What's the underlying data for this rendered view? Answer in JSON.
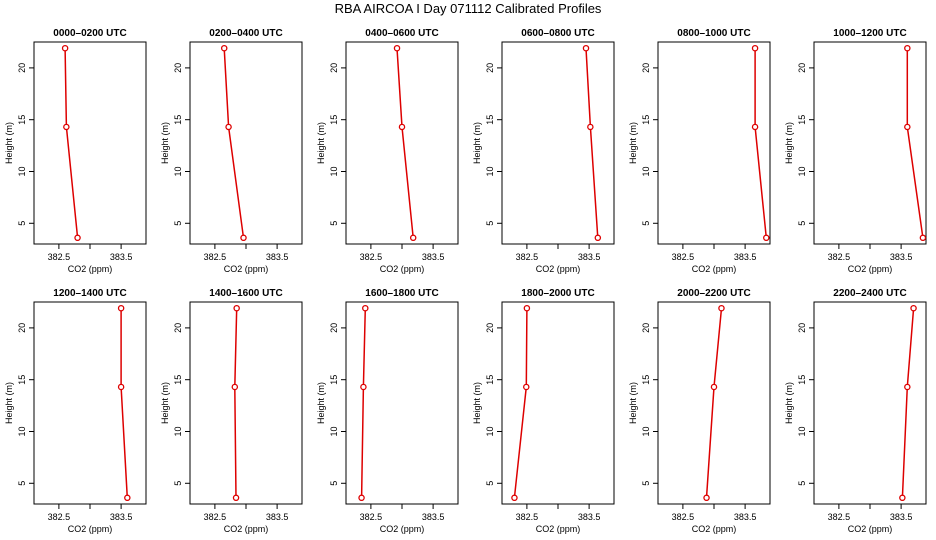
{
  "title": "RBA AIRCOA I  Day 071112  Calibrated Profiles",
  "colors": {
    "series": "#dd0000",
    "axis": "#000000",
    "background": "#ffffff"
  },
  "chart_data": [
    {
      "type": "line",
      "title": "0000–0200 UTC",
      "xlabel": "CO2 (ppm)",
      "ylabel": "Height (m)",
      "xlim": [
        382.1,
        383.9
      ],
      "ylim": [
        3,
        22.5
      ],
      "xticks": [
        382.5,
        383.0,
        383.5
      ],
      "xtick_labels": [
        "382.5",
        "",
        "383.5"
      ],
      "yticks": [
        5,
        10,
        15,
        20
      ],
      "ytick_labels": [
        "5",
        "10",
        "15",
        "20"
      ],
      "x": [
        382.6,
        382.62,
        382.8
      ],
      "y": [
        21.9,
        14.3,
        3.6
      ]
    },
    {
      "type": "line",
      "title": "0200–0400 UTC",
      "xlabel": "CO2 (ppm)",
      "ylabel": "Height (m)",
      "xlim": [
        382.1,
        383.9
      ],
      "ylim": [
        3,
        22.5
      ],
      "xticks": [
        382.5,
        383.0,
        383.5
      ],
      "xtick_labels": [
        "382.5",
        "",
        "383.5"
      ],
      "yticks": [
        5,
        10,
        15,
        20
      ],
      "ytick_labels": [
        "5",
        "10",
        "15",
        "20"
      ],
      "x": [
        382.65,
        382.72,
        382.96
      ],
      "y": [
        21.9,
        14.3,
        3.6
      ]
    },
    {
      "type": "line",
      "title": "0400–0600 UTC",
      "xlabel": "CO2 (ppm)",
      "ylabel": "Height (m)",
      "xlim": [
        382.1,
        383.9
      ],
      "ylim": [
        3,
        22.5
      ],
      "xticks": [
        382.5,
        383.0,
        383.5
      ],
      "xtick_labels": [
        "382.5",
        "",
        "383.5"
      ],
      "yticks": [
        5,
        10,
        15,
        20
      ],
      "ytick_labels": [
        "5",
        "10",
        "15",
        "20"
      ],
      "x": [
        382.92,
        383.0,
        383.18
      ],
      "y": [
        21.9,
        14.3,
        3.6
      ]
    },
    {
      "type": "line",
      "title": "0600–0800 UTC",
      "xlabel": "CO2 (ppm)",
      "ylabel": "Height (m)",
      "xlim": [
        382.1,
        383.9
      ],
      "ylim": [
        3,
        22.5
      ],
      "xticks": [
        382.5,
        383.0,
        383.5
      ],
      "xtick_labels": [
        "382.5",
        "",
        "383.5"
      ],
      "yticks": [
        5,
        10,
        15,
        20
      ],
      "ytick_labels": [
        "5",
        "10",
        "15",
        "20"
      ],
      "x": [
        383.45,
        383.52,
        383.64
      ],
      "y": [
        21.9,
        14.3,
        3.6
      ]
    },
    {
      "type": "line",
      "title": "0800–1000 UTC",
      "xlabel": "CO2 (ppm)",
      "ylabel": "Height (m)",
      "xlim": [
        382.1,
        383.9
      ],
      "ylim": [
        3,
        22.5
      ],
      "xticks": [
        382.5,
        383.0,
        383.5
      ],
      "xtick_labels": [
        "382.5",
        "",
        "383.5"
      ],
      "yticks": [
        5,
        10,
        15,
        20
      ],
      "ytick_labels": [
        "5",
        "10",
        "15",
        "20"
      ],
      "x": [
        383.66,
        383.66,
        383.84
      ],
      "y": [
        21.9,
        14.3,
        3.6
      ]
    },
    {
      "type": "line",
      "title": "1000–1200 UTC",
      "xlabel": "CO2 (ppm)",
      "ylabel": "Height (m)",
      "xlim": [
        382.1,
        383.9
      ],
      "ylim": [
        3,
        22.5
      ],
      "xticks": [
        382.5,
        383.0,
        383.5
      ],
      "xtick_labels": [
        "382.5",
        "",
        "383.5"
      ],
      "yticks": [
        5,
        10,
        15,
        20
      ],
      "ytick_labels": [
        "5",
        "10",
        "15",
        "20"
      ],
      "x": [
        383.6,
        383.6,
        383.85
      ],
      "y": [
        21.9,
        14.3,
        3.6
      ]
    },
    {
      "type": "line",
      "title": "1200–1400 UTC",
      "xlabel": "CO2 (ppm)",
      "ylabel": "Height (m)",
      "xlim": [
        382.1,
        383.9
      ],
      "ylim": [
        3,
        22.5
      ],
      "xticks": [
        382.5,
        383.0,
        383.5
      ],
      "xtick_labels": [
        "382.5",
        "",
        "383.5"
      ],
      "yticks": [
        5,
        10,
        15,
        20
      ],
      "ytick_labels": [
        "5",
        "10",
        "15",
        "20"
      ],
      "x": [
        383.5,
        383.5,
        383.6
      ],
      "y": [
        21.9,
        14.3,
        3.6
      ]
    },
    {
      "type": "line",
      "title": "1400–1600 UTC",
      "xlabel": "CO2 (ppm)",
      "ylabel": "Height (m)",
      "xlim": [
        382.1,
        383.9
      ],
      "ylim": [
        3,
        22.5
      ],
      "xticks": [
        382.5,
        383.0,
        383.5
      ],
      "xtick_labels": [
        "382.5",
        "",
        "383.5"
      ],
      "yticks": [
        5,
        10,
        15,
        20
      ],
      "ytick_labels": [
        "5",
        "10",
        "15",
        "20"
      ],
      "x": [
        382.85,
        382.82,
        382.84
      ],
      "y": [
        21.9,
        14.3,
        3.6
      ]
    },
    {
      "type": "line",
      "title": "1600–1800 UTC",
      "xlabel": "CO2 (ppm)",
      "ylabel": "Height (m)",
      "xlim": [
        382.1,
        383.9
      ],
      "ylim": [
        3,
        22.5
      ],
      "xticks": [
        382.5,
        383.0,
        383.5
      ],
      "xtick_labels": [
        "382.5",
        "",
        "383.5"
      ],
      "yticks": [
        5,
        10,
        15,
        20
      ],
      "ytick_labels": [
        "5",
        "10",
        "15",
        "20"
      ],
      "x": [
        382.41,
        382.38,
        382.35
      ],
      "y": [
        21.9,
        14.3,
        3.6
      ]
    },
    {
      "type": "line",
      "title": "1800–2000 UTC",
      "xlabel": "CO2 (ppm)",
      "ylabel": "Height (m)",
      "xlim": [
        382.1,
        383.9
      ],
      "ylim": [
        3,
        22.5
      ],
      "xticks": [
        382.5,
        383.0,
        383.5
      ],
      "xtick_labels": [
        "382.5",
        "",
        "383.5"
      ],
      "yticks": [
        5,
        10,
        15,
        20
      ],
      "ytick_labels": [
        "5",
        "10",
        "15",
        "20"
      ],
      "x": [
        382.5,
        382.49,
        382.3
      ],
      "y": [
        21.9,
        14.3,
        3.6
      ]
    },
    {
      "type": "line",
      "title": "2000–2200 UTC",
      "xlabel": "CO2 (ppm)",
      "ylabel": "Height (m)",
      "xlim": [
        382.1,
        383.9
      ],
      "ylim": [
        3,
        22.5
      ],
      "xticks": [
        382.5,
        383.0,
        383.5
      ],
      "xtick_labels": [
        "382.5",
        "",
        "383.5"
      ],
      "yticks": [
        5,
        10,
        15,
        20
      ],
      "ytick_labels": [
        "5",
        "10",
        "15",
        "20"
      ],
      "x": [
        383.12,
        383.0,
        382.88
      ],
      "y": [
        21.9,
        14.3,
        3.6
      ]
    },
    {
      "type": "line",
      "title": "2200–2400 UTC",
      "xlabel": "CO2 (ppm)",
      "ylabel": "Height (m)",
      "xlim": [
        382.1,
        383.9
      ],
      "ylim": [
        3,
        22.5
      ],
      "xticks": [
        382.5,
        383.0,
        383.5
      ],
      "xtick_labels": [
        "382.5",
        "",
        "383.5"
      ],
      "yticks": [
        5,
        10,
        15,
        20
      ],
      "ytick_labels": [
        "5",
        "10",
        "15",
        "20"
      ],
      "x": [
        383.7,
        383.6,
        383.52
      ],
      "y": [
        21.9,
        14.3,
        3.6
      ]
    }
  ]
}
